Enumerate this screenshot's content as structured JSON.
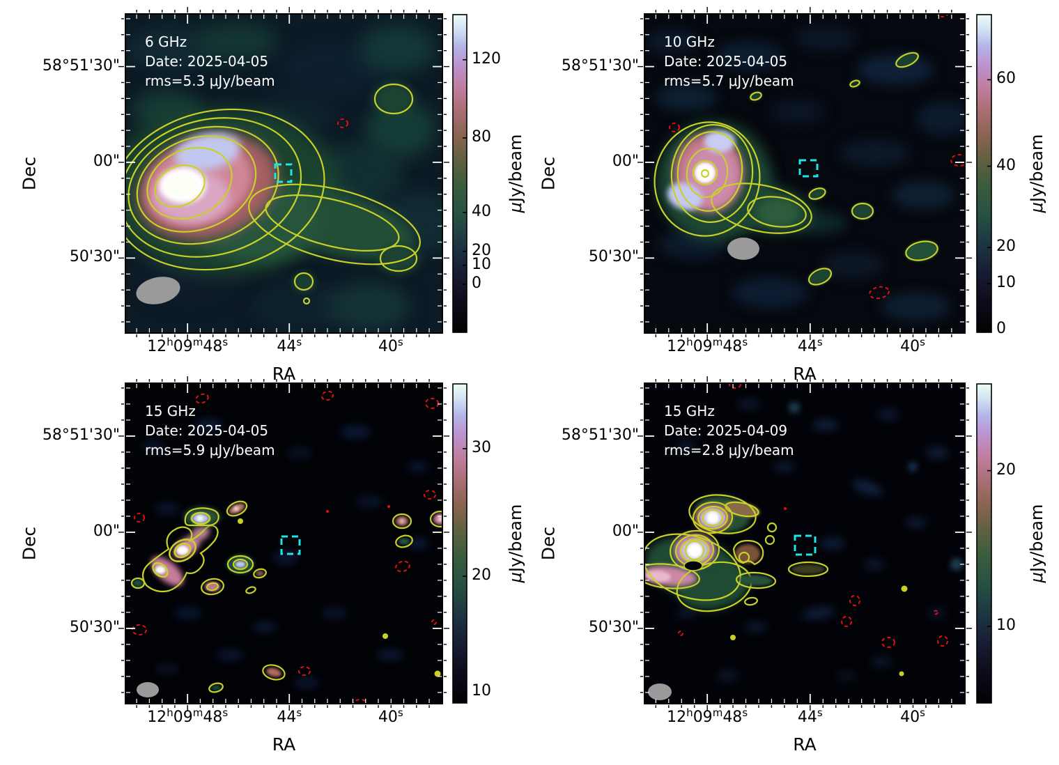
{
  "colors": {
    "contour": "#c8d02a",
    "negative_contour": "#dd1111",
    "target_box": "#1ce6e6",
    "beam": "#9a9a9a",
    "panel_text": "#ffffff",
    "axis_text": "#000000",
    "figure_background": "#ffffff",
    "colormap_stops": [
      [
        0.0,
        "#020203"
      ],
      [
        0.1,
        "#0e0c1c"
      ],
      [
        0.19,
        "#171e33"
      ],
      [
        0.28,
        "#1d3642"
      ],
      [
        0.37,
        "#265142"
      ],
      [
        0.46,
        "#3a5c3e"
      ],
      [
        0.54,
        "#5f6040"
      ],
      [
        0.62,
        "#8a6450"
      ],
      [
        0.7,
        "#ab6e76"
      ],
      [
        0.77,
        "#c07e9e"
      ],
      [
        0.84,
        "#bc92cf"
      ],
      [
        0.9,
        "#b4b4e8"
      ],
      [
        0.95,
        "#cfe0f2"
      ],
      [
        1.0,
        "#edfdf6"
      ]
    ]
  },
  "chart_data": {
    "type": "heatmap",
    "layout": "2x2 radio interferometry maps with colorbars",
    "panels": [
      {
        "frequency": "6 GHz",
        "date": "Date: 2025-04-05",
        "rms": "rms=5.3 μJy/beam",
        "colorbar_unit_mu": "μ",
        "colorbar_unit_rest": "Jy/beam",
        "colorbar_ticks": [
          {
            "label": "120",
            "f": 0.142
          },
          {
            "label": "80",
            "f": 0.388
          },
          {
            "label": "40",
            "f": 0.623
          },
          {
            "label": "20",
            "f": 0.745
          },
          {
            "label": "10",
            "f": 0.789
          },
          {
            "label": "0",
            "f": 0.849
          }
        ]
      },
      {
        "frequency": "10 GHz",
        "date": "Date: 2025-04-05",
        "rms": "rms=5.7 μJy/beam",
        "colorbar_unit_mu": "μ",
        "colorbar_unit_rest": "Jy/beam",
        "colorbar_ticks": [
          {
            "label": "60",
            "f": 0.205
          },
          {
            "label": "40",
            "f": 0.477
          },
          {
            "label": "20",
            "f": 0.733
          },
          {
            "label": "10",
            "f": 0.847
          },
          {
            "label": "0",
            "f": 0.992
          }
        ]
      },
      {
        "frequency": "15 GHz",
        "date": "Date: 2025-04-05",
        "rms": "rms=5.9 μJy/beam",
        "colorbar_unit_mu": "μ",
        "colorbar_unit_rest": "Jy/beam",
        "colorbar_ticks": [
          {
            "label": "30",
            "f": 0.203
          },
          {
            "label": "20",
            "f": 0.603
          },
          {
            "label": "10",
            "f": 0.966
          }
        ]
      },
      {
        "frequency": "15 GHz",
        "date": "Date: 2025-04-09",
        "rms": "rms=2.8 μJy/beam",
        "colorbar_unit_mu": "μ",
        "colorbar_unit_rest": "Jy/beam",
        "colorbar_ticks": [
          {
            "label": "20",
            "f": 0.272
          },
          {
            "label": "10",
            "f": 0.76
          }
        ]
      }
    ],
    "x_axis": {
      "label": "RA",
      "major_ticks": [
        {
          "f": 0.196,
          "segments": [
            [
              "12",
              0
            ],
            [
              "h",
              1
            ],
            [
              "09",
              0
            ],
            [
              "m",
              1
            ],
            [
              "48",
              0
            ],
            [
              "s",
              1
            ]
          ]
        },
        {
          "f": 0.517,
          "segments": [
            [
              "44",
              0
            ],
            [
              "s",
              1
            ]
          ]
        },
        {
          "f": 0.837,
          "segments": [
            [
              "40",
              0
            ],
            [
              "s",
              1
            ]
          ]
        }
      ],
      "minor_subdivisions": 8
    },
    "y_axis": {
      "label": "Dec",
      "major_ticks": [
        {
          "f": 0.165,
          "text": "58°51'30\""
        },
        {
          "f": 0.465,
          "text": "00\""
        },
        {
          "f": 0.765,
          "text": "50'30\""
        }
      ],
      "minor_subdivisions": 6
    },
    "markers": {
      "target_box": "cyan dashed square",
      "beam": "gray filled ellipse",
      "positive_contours": "yellow solid",
      "negative_contours": "red dashed"
    }
  }
}
